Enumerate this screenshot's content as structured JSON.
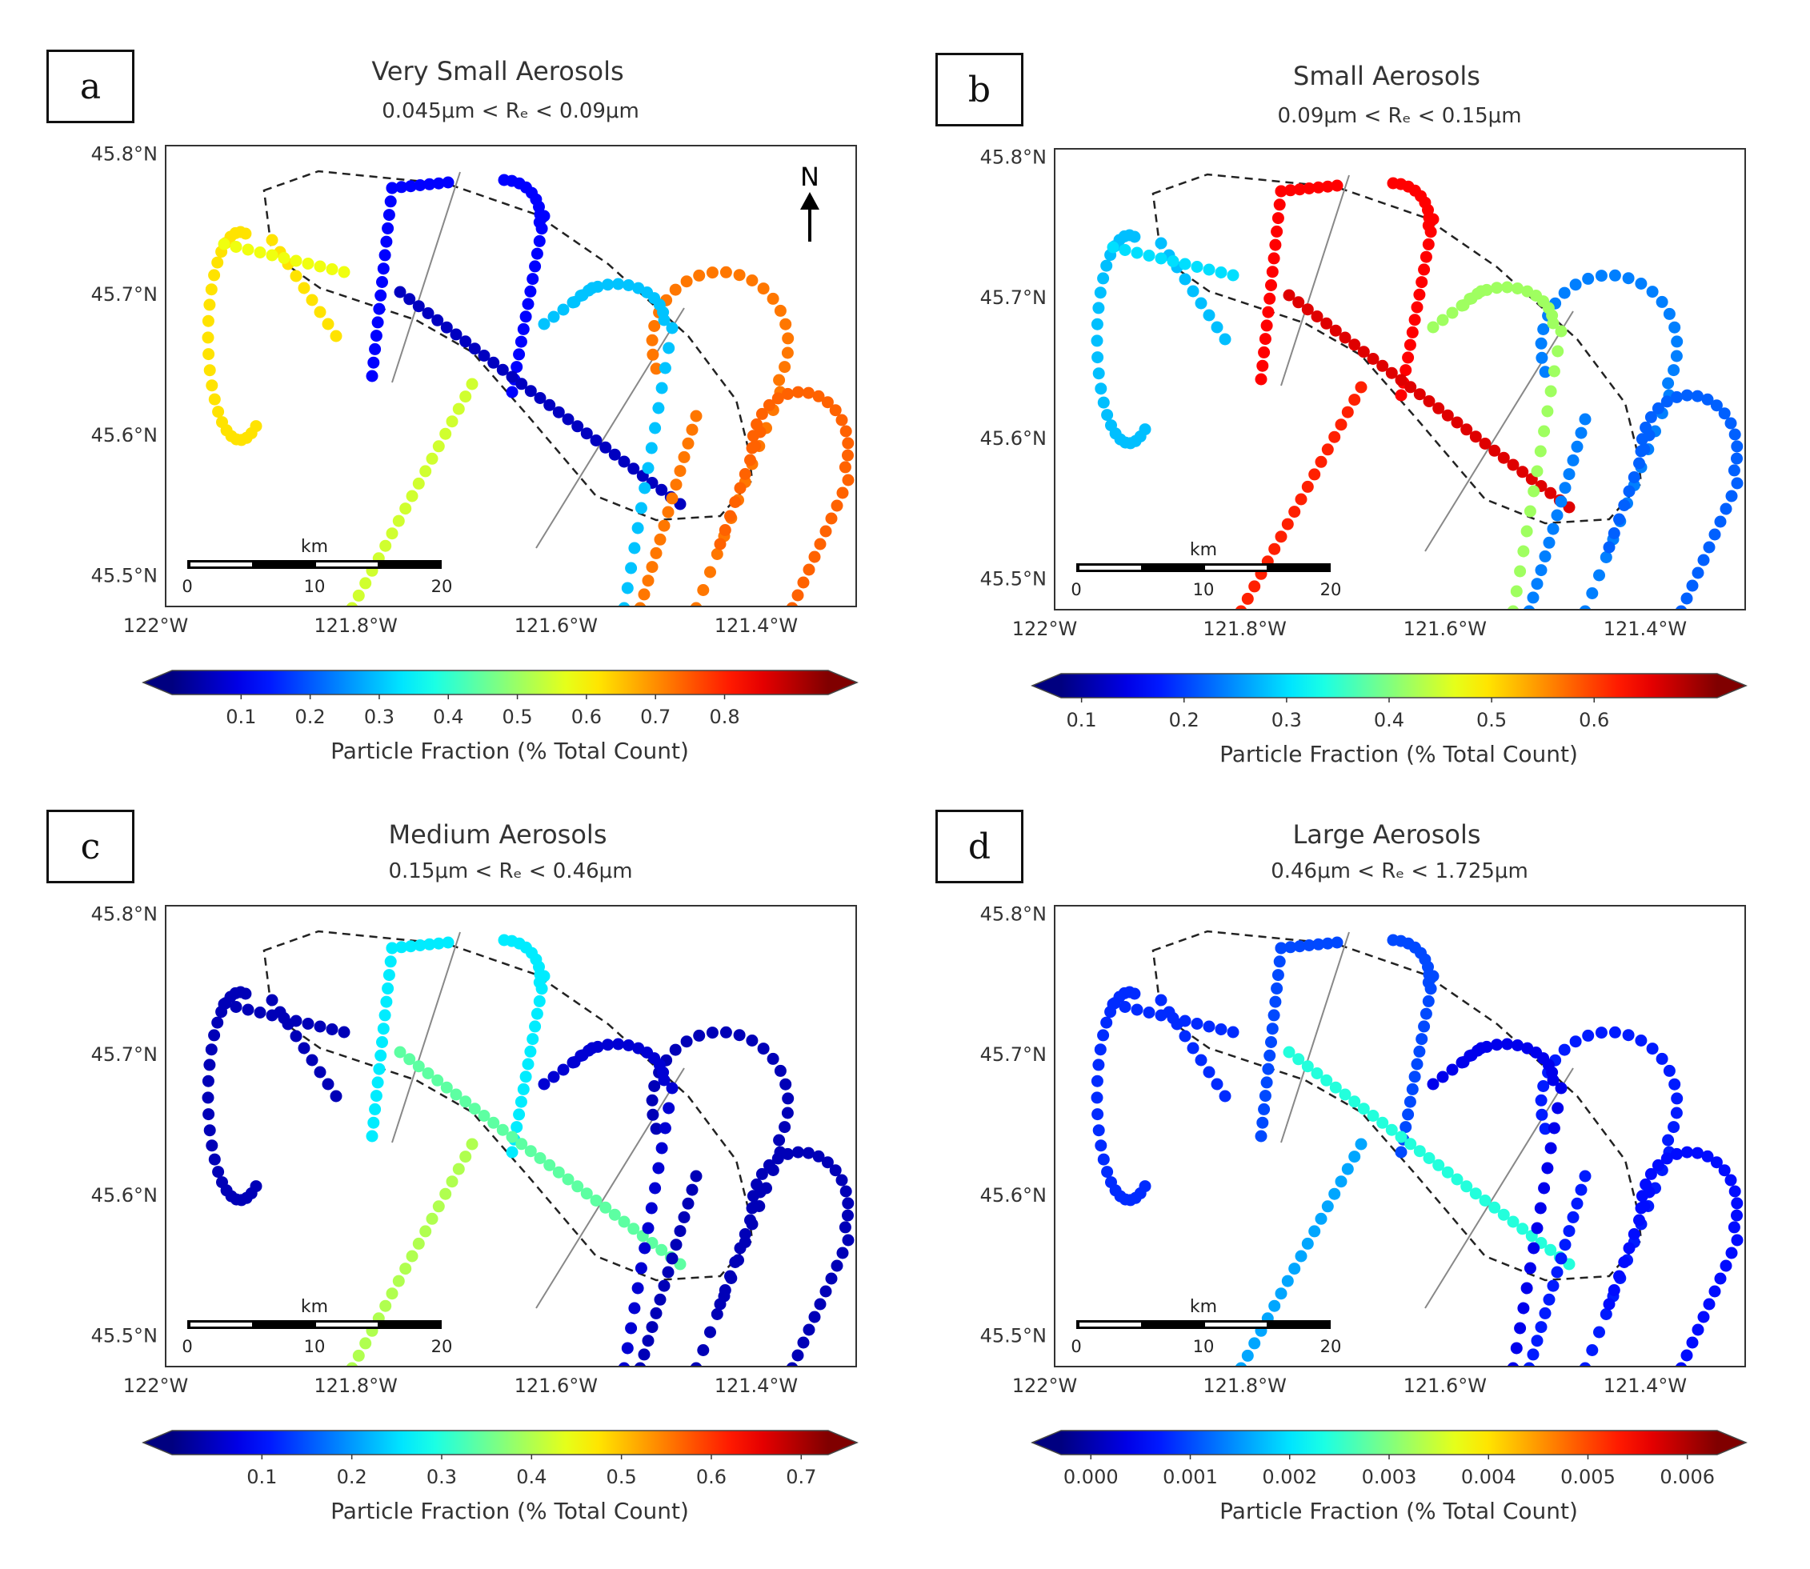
{
  "panels": [
    {
      "id": "a",
      "letter": "a",
      "title": "Very Small Aerosols",
      "subtitle": "0.045μm < Rₑ < 0.09μm",
      "colorbar": {
        "ticks": [
          "0.1",
          "0.2",
          "0.3",
          "0.4",
          "0.5",
          "0.6",
          "0.7",
          "0.8"
        ],
        "tick_values": [
          0.1,
          0.2,
          0.3,
          0.4,
          0.5,
          0.6,
          0.7,
          0.8
        ],
        "range": [
          0.0,
          0.95
        ],
        "label": "Particle Fraction (% Total Count)"
      },
      "north_arrow": "N",
      "tracks": {
        "loop_w": 0.62,
        "diag_w": 0.58,
        "north_loop": 0.12,
        "mid_diag": 0.06,
        "east_loop": 0.72,
        "south_leg": 0.55,
        "ne_loop": 0.3,
        "far_loop": 0.74
      }
    },
    {
      "id": "b",
      "letter": "b",
      "title": "Small Aerosols",
      "subtitle": "0.09μm < Rₑ < 0.15μm",
      "colorbar": {
        "ticks": [
          "0.1",
          "0.2",
          "0.3",
          "0.4",
          "0.5",
          "0.6"
        ],
        "tick_values": [
          0.1,
          0.2,
          0.3,
          0.4,
          0.5,
          0.6
        ],
        "range": [
          0.08,
          0.72
        ],
        "label": "Particle Fraction (% Total Count)"
      },
      "tracks": {
        "loop_w": 0.28,
        "diag_w": 0.3,
        "north_loop": 0.64,
        "mid_diag": 0.66,
        "east_loop": 0.24,
        "south_leg": 0.62,
        "ne_loop": 0.42,
        "far_loop": 0.22
      }
    },
    {
      "id": "c",
      "letter": "c",
      "title": "Medium Aerosols",
      "subtitle": "0.15μm < Rₑ < 0.46μm",
      "colorbar": {
        "ticks": [
          "0.1",
          "0.2",
          "0.3",
          "0.4",
          "0.5",
          "0.6",
          "0.7"
        ],
        "tick_values": [
          0.1,
          0.2,
          0.3,
          0.4,
          0.5,
          0.6,
          0.7
        ],
        "range": [
          0.0,
          0.73
        ],
        "label": "Particle Fraction (% Total Count)"
      },
      "tracks": {
        "loop_w": 0.04,
        "diag_w": 0.04,
        "north_loop": 0.26,
        "mid_diag": 0.34,
        "east_loop": 0.04,
        "south_leg": 0.4,
        "ne_loop": 0.06,
        "far_loop": 0.04
      }
    },
    {
      "id": "d",
      "letter": "d",
      "title": "Large Aerosols",
      "subtitle": "0.46μm < Rₑ < 1.725μm",
      "colorbar": {
        "ticks": [
          "0.000",
          "0.001",
          "0.002",
          "0.003",
          "0.004",
          "0.005",
          "0.006"
        ],
        "tick_values": [
          0.0,
          0.001,
          0.002,
          0.003,
          0.004,
          0.005,
          0.006
        ],
        "range": [
          -0.0003,
          0.0063
        ],
        "label": "Particle Fraction (% Total Count)"
      },
      "tracks": {
        "loop_w": 0.0008,
        "diag_w": 0.0008,
        "north_loop": 0.001,
        "mid_diag": 0.0024,
        "east_loop": 0.0007,
        "south_leg": 0.0016,
        "ne_loop": 0.0004,
        "far_loop": 0.0006
      }
    }
  ],
  "map": {
    "lat_ticks": [
      "45.8°N",
      "45.7°N",
      "45.6°N",
      "45.5°N"
    ],
    "lat_values": [
      45.8,
      45.7,
      45.6,
      45.5
    ],
    "lon_ticks": [
      "122°W",
      "121.8°W",
      "121.6°W",
      "121.4°W"
    ],
    "lon_values": [
      -122.0,
      -121.8,
      -121.6,
      -121.4
    ],
    "extent": {
      "lon_min": -121.99,
      "lon_max": -121.3,
      "lat_min": 45.478,
      "lat_max": 45.806
    },
    "scale_bar": {
      "unit": "km",
      "labels": [
        "0",
        "10",
        "20"
      ]
    }
  },
  "colormap": "jet"
}
